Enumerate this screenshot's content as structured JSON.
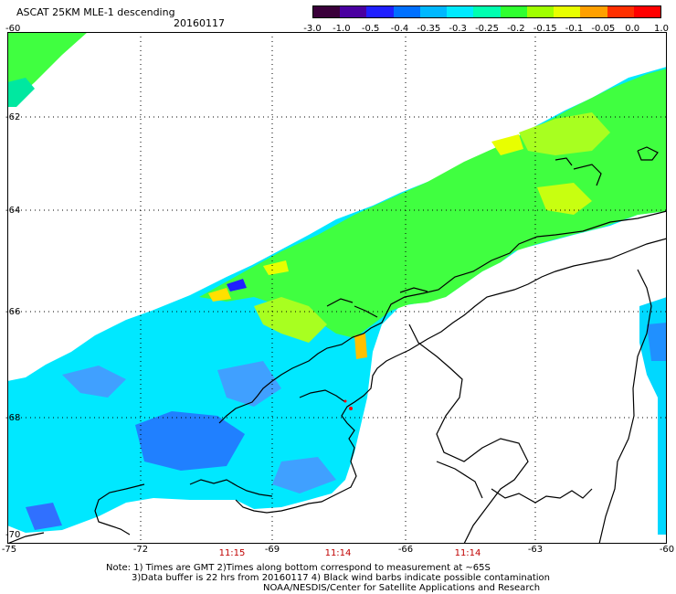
{
  "header": {
    "title": "ASCAT 25KM MLE-1 descending",
    "date": "20160117"
  },
  "colorbar": {
    "labels": [
      "-3.0",
      "-1.0",
      "-0.5",
      "-0.4",
      "-0.35",
      "-0.3",
      "-0.25",
      "-0.2",
      "-0.15",
      "-0.1",
      "-0.05",
      "0.0",
      "1.0"
    ],
    "colors": [
      "#3a003a",
      "#4a00a0",
      "#2020ff",
      "#0070ff",
      "#00b8ff",
      "#00eaff",
      "#00ffb0",
      "#30ff30",
      "#a0ff00",
      "#e8ff00",
      "#ffa000",
      "#ff3000",
      "#ff0000"
    ]
  },
  "axes": {
    "lat_labels": [
      "-60",
      "-62",
      "-64",
      "-66",
      "-68",
      "-70"
    ],
    "lon_labels": [
      "-75",
      "-72",
      "-69",
      "-66",
      "-63",
      "-60"
    ],
    "time_labels": [
      "11:15",
      "11:14",
      "11:14"
    ]
  },
  "notes": {
    "line1": "Note: 1) Times are GMT 2)Times along bottom correspond to measurement at ~65S",
    "line2": "3)Data buffer is 22 hrs from 20160117 4) Black wind barbs indicate possible contamination",
    "line3": "NOAA/NESDIS/Center for Satellite Applications and Research"
  }
}
